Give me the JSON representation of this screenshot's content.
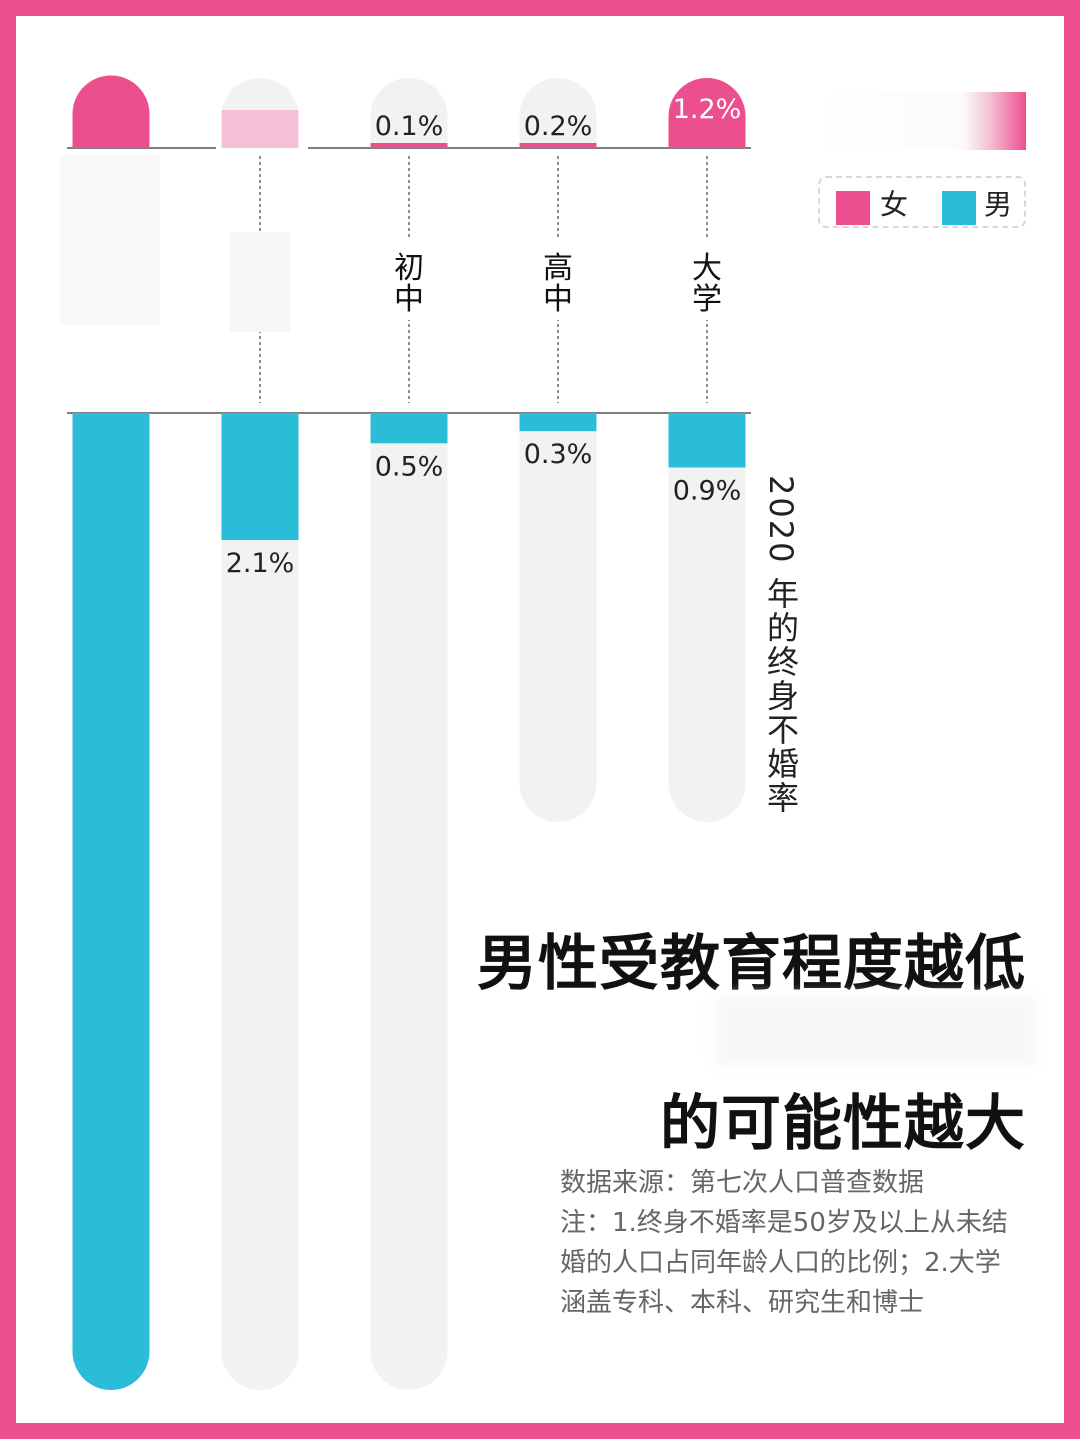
{
  "colors": {
    "female": "#ec4f8e",
    "male": "#2bbcd8",
    "track": "#f2f2f2",
    "border": "#ec4f8e"
  },
  "legend": {
    "female_label": "女",
    "male_label": "男"
  },
  "side_title": "2020 年的终身不婚率",
  "headline": {
    "line1": "男性受教育程度越低",
    "line2": "的可能性越大"
  },
  "notes": {
    "source": "数据来源：第七次人口普查数据",
    "note_line1": "注：1.终身不婚率是50岁及以上从未结",
    "note_line2": "婚的人口占同年龄人口的比例；2.大学",
    "note_line3": "涵盖专科、本科、研究生和博士"
  },
  "chart_data": {
    "type": "bar",
    "title": "2020 年的终身不婚率",
    "categories": [
      "",
      "",
      "初中",
      "高中",
      "大学"
    ],
    "series": [
      {
        "name": "女",
        "values": [
          null,
          null,
          0.1,
          0.2,
          1.2
        ],
        "labels": [
          "",
          "",
          "0.1%",
          "0.2%",
          "1.2%"
        ]
      },
      {
        "name": "男",
        "values": [
          null,
          2.1,
          0.5,
          0.3,
          0.9
        ],
        "labels": [
          "",
          "2.1%",
          "0.5%",
          "0.3%",
          "0.9%"
        ]
      }
    ]
  }
}
